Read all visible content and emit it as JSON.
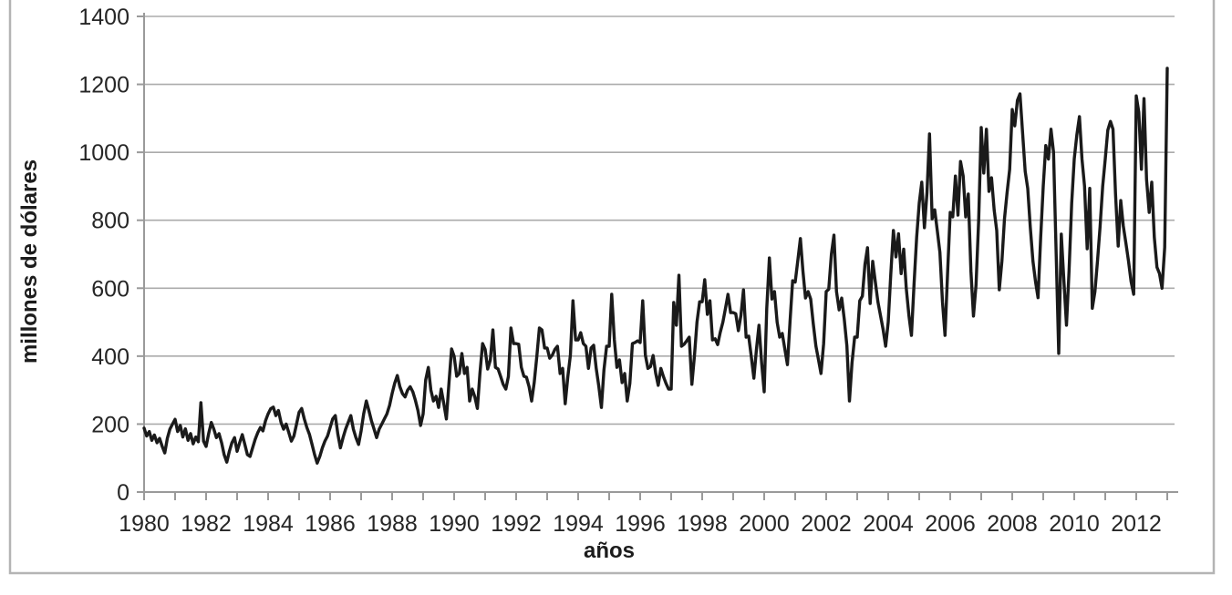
{
  "figure": {
    "background_color": "#ffffff",
    "frame_color": "#b4b4b4"
  },
  "chart_data": {
    "type": "line",
    "title": "",
    "xlabel": "años",
    "ylabel": "millones de dólares",
    "xlim": [
      1980,
      2013.25
    ],
    "ylim": [
      0,
      1400
    ],
    "grid": "horizontal",
    "legend": "none",
    "line_color": "#1a1a1a",
    "grid_color": "#ababab",
    "axis_color": "#9a9a9a",
    "y_ticks": [
      0,
      200,
      400,
      600,
      800,
      1000,
      1200,
      1400
    ],
    "x_tick_labels": [
      "1980",
      "1982",
      "1984",
      "1986",
      "1988",
      "1990",
      "1992",
      "1994",
      "1996",
      "1998",
      "2000",
      "2002",
      "2004",
      "2006",
      "2008",
      "2010",
      "2012"
    ],
    "x_minor_tick_every_years": 1,
    "series_start_year": 1980,
    "points_per_year": 12,
    "values": [
      188,
      165,
      178,
      152,
      168,
      145,
      158,
      135,
      115,
      158,
      185,
      200,
      214,
      178,
      196,
      162,
      186,
      152,
      172,
      142,
      162,
      148,
      263,
      150,
      134,
      172,
      205,
      185,
      160,
      172,
      145,
      110,
      88,
      120,
      145,
      160,
      120,
      145,
      169,
      140,
      110,
      105,
      130,
      155,
      175,
      190,
      180,
      210,
      230,
      245,
      250,
      225,
      240,
      205,
      185,
      200,
      175,
      150,
      165,
      200,
      235,
      246,
      215,
      190,
      170,
      140,
      110,
      85,
      105,
      130,
      150,
      165,
      190,
      215,
      225,
      170,
      130,
      160,
      185,
      205,
      225,
      185,
      160,
      140,
      180,
      230,
      268,
      240,
      210,
      185,
      160,
      185,
      200,
      215,
      230,
      255,
      290,
      320,
      343,
      310,
      290,
      280,
      300,
      310,
      295,
      270,
      240,
      196,
      230,
      330,
      367,
      300,
      268,
      282,
      249,
      303,
      260,
      215,
      320,
      421,
      400,
      341,
      349,
      408,
      349,
      367,
      268,
      303,
      280,
      246,
      350,
      437,
      420,
      362,
      389,
      477,
      367,
      362,
      340,
      317,
      303,
      340,
      483,
      437,
      437,
      435,
      367,
      341,
      338,
      310,
      268,
      322,
      400,
      483,
      477,
      424,
      424,
      394,
      403,
      420,
      429,
      349,
      364,
      260,
      340,
      403,
      563,
      448,
      448,
      469,
      437,
      429,
      364,
      424,
      432,
      364,
      310,
      249,
      360,
      429,
      429,
      582,
      448,
      367,
      389,
      322,
      349,
      268,
      320,
      437,
      440,
      445,
      440,
      563,
      403,
      364,
      369,
      402,
      350,
      314,
      364,
      340,
      320,
      303,
      303,
      558,
      491,
      638,
      429,
      435,
      445,
      456,
      317,
      400,
      500,
      560,
      560,
      625,
      523,
      563,
      448,
      451,
      434,
      470,
      500,
      540,
      582,
      528,
      528,
      525,
      475,
      520,
      595,
      456,
      459,
      400,
      335,
      420,
      491,
      380,
      295,
      540,
      689,
      568,
      590,
      500,
      456,
      467,
      420,
      375,
      500,
      622,
      618,
      680,
      746,
      650,
      571,
      590,
      568,
      496,
      430,
      390,
      349,
      437,
      590,
      597,
      700,
      756,
      590,
      536,
      571,
      509,
      430,
      268,
      380,
      456,
      456,
      563,
      577,
      670,
      719,
      555,
      679,
      620,
      560,
      520,
      480,
      429,
      500,
      640,
      770,
      692,
      760,
      643,
      715,
      600,
      520,
      461,
      610,
      750,
      850,
      912,
      778,
      880,
      1054,
      804,
      831,
      770,
      705,
      560,
      461,
      650,
      823,
      810,
      930,
      815,
      973,
      930,
      810,
      877,
      650,
      518,
      609,
      800,
      1073,
      939,
      1068,
      885,
      925,
      830,
      770,
      595,
      680,
      804,
      880,
      950,
      1126,
      1078,
      1153,
      1172,
      1060,
      944,
      894,
      780,
      680,
      620,
      572,
      750,
      900,
      1020,
      980,
      1068,
      1000,
      700,
      408,
      759,
      620,
      491,
      650,
      850,
      980,
      1050,
      1105,
      980,
      900,
      716,
      894,
      541,
      590,
      680,
      780,
      900,
      980,
      1065,
      1091,
      1068,
      876,
      724,
      858,
      783,
      732,
      680,
      620,
      582,
      1166,
      1118,
      950,
      1158,
      920,
      823,
      912,
      750,
      662,
      643,
      600,
      720,
      1247
    ]
  }
}
